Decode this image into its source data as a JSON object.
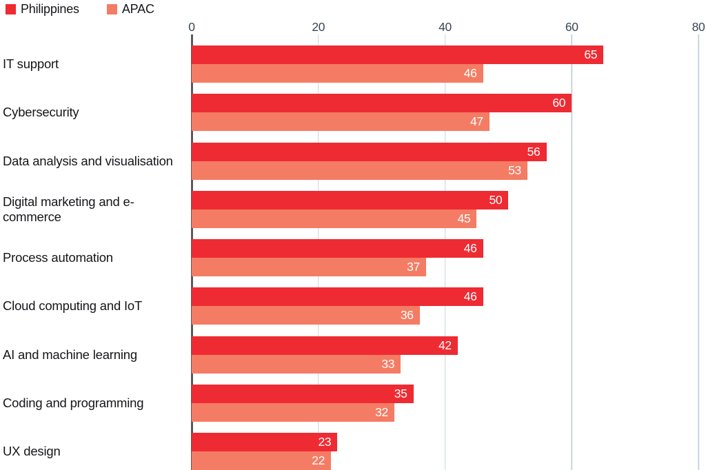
{
  "chart_data": {
    "type": "bar",
    "orientation": "horizontal",
    "categories": [
      "IT support",
      "Cybersecurity",
      "Data analysis and visualisation",
      "Digital marketing and e-commerce",
      "Process automation",
      "Cloud computing and IoT",
      "AI and machine learning",
      "Coding and programming",
      "UX design"
    ],
    "series": [
      {
        "name": "Philippines",
        "color": "#ee2b33",
        "values": [
          65,
          60,
          56,
          50,
          46,
          46,
          42,
          35,
          23
        ]
      },
      {
        "name": "APAC",
        "color": "#f47c64",
        "values": [
          46,
          47,
          53,
          45,
          37,
          36,
          33,
          32,
          22
        ]
      }
    ],
    "x_axis": {
      "ticks": [
        0,
        20,
        40,
        60,
        80
      ],
      "min": 0,
      "max": 80,
      "position": "top"
    },
    "grid": true,
    "legend_position": "top-left",
    "value_labels": "inside-end"
  },
  "colors": {
    "gridline": "#c9d3de",
    "zero_axis": "#58595b",
    "tick_text": "#3a4654",
    "category_text": "#15161a",
    "value_text": "#ffffff"
  }
}
